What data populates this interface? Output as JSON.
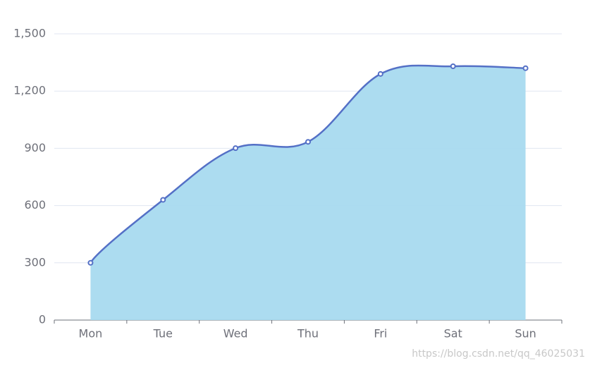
{
  "chart_data": {
    "type": "line",
    "smooth": true,
    "area": true,
    "grid": true,
    "categories": [
      "Mon",
      "Tue",
      "Wed",
      "Thu",
      "Fri",
      "Sat",
      "Sun"
    ],
    "series": [
      {
        "color": "#5470c6",
        "area_color": "#a8daef",
        "values": [
          300,
          630,
          901,
          934,
          1290,
          1330,
          1320
        ]
      }
    ],
    "ylim": [
      0,
      1500
    ],
    "yticks": [
      0,
      300,
      600,
      900,
      {
        "value": 1200,
        "label": "1,200"
      },
      {
        "value": 1500,
        "label": "1,500"
      }
    ],
    "watermark": "https://blog.csdn.net/qq_46025031"
  }
}
